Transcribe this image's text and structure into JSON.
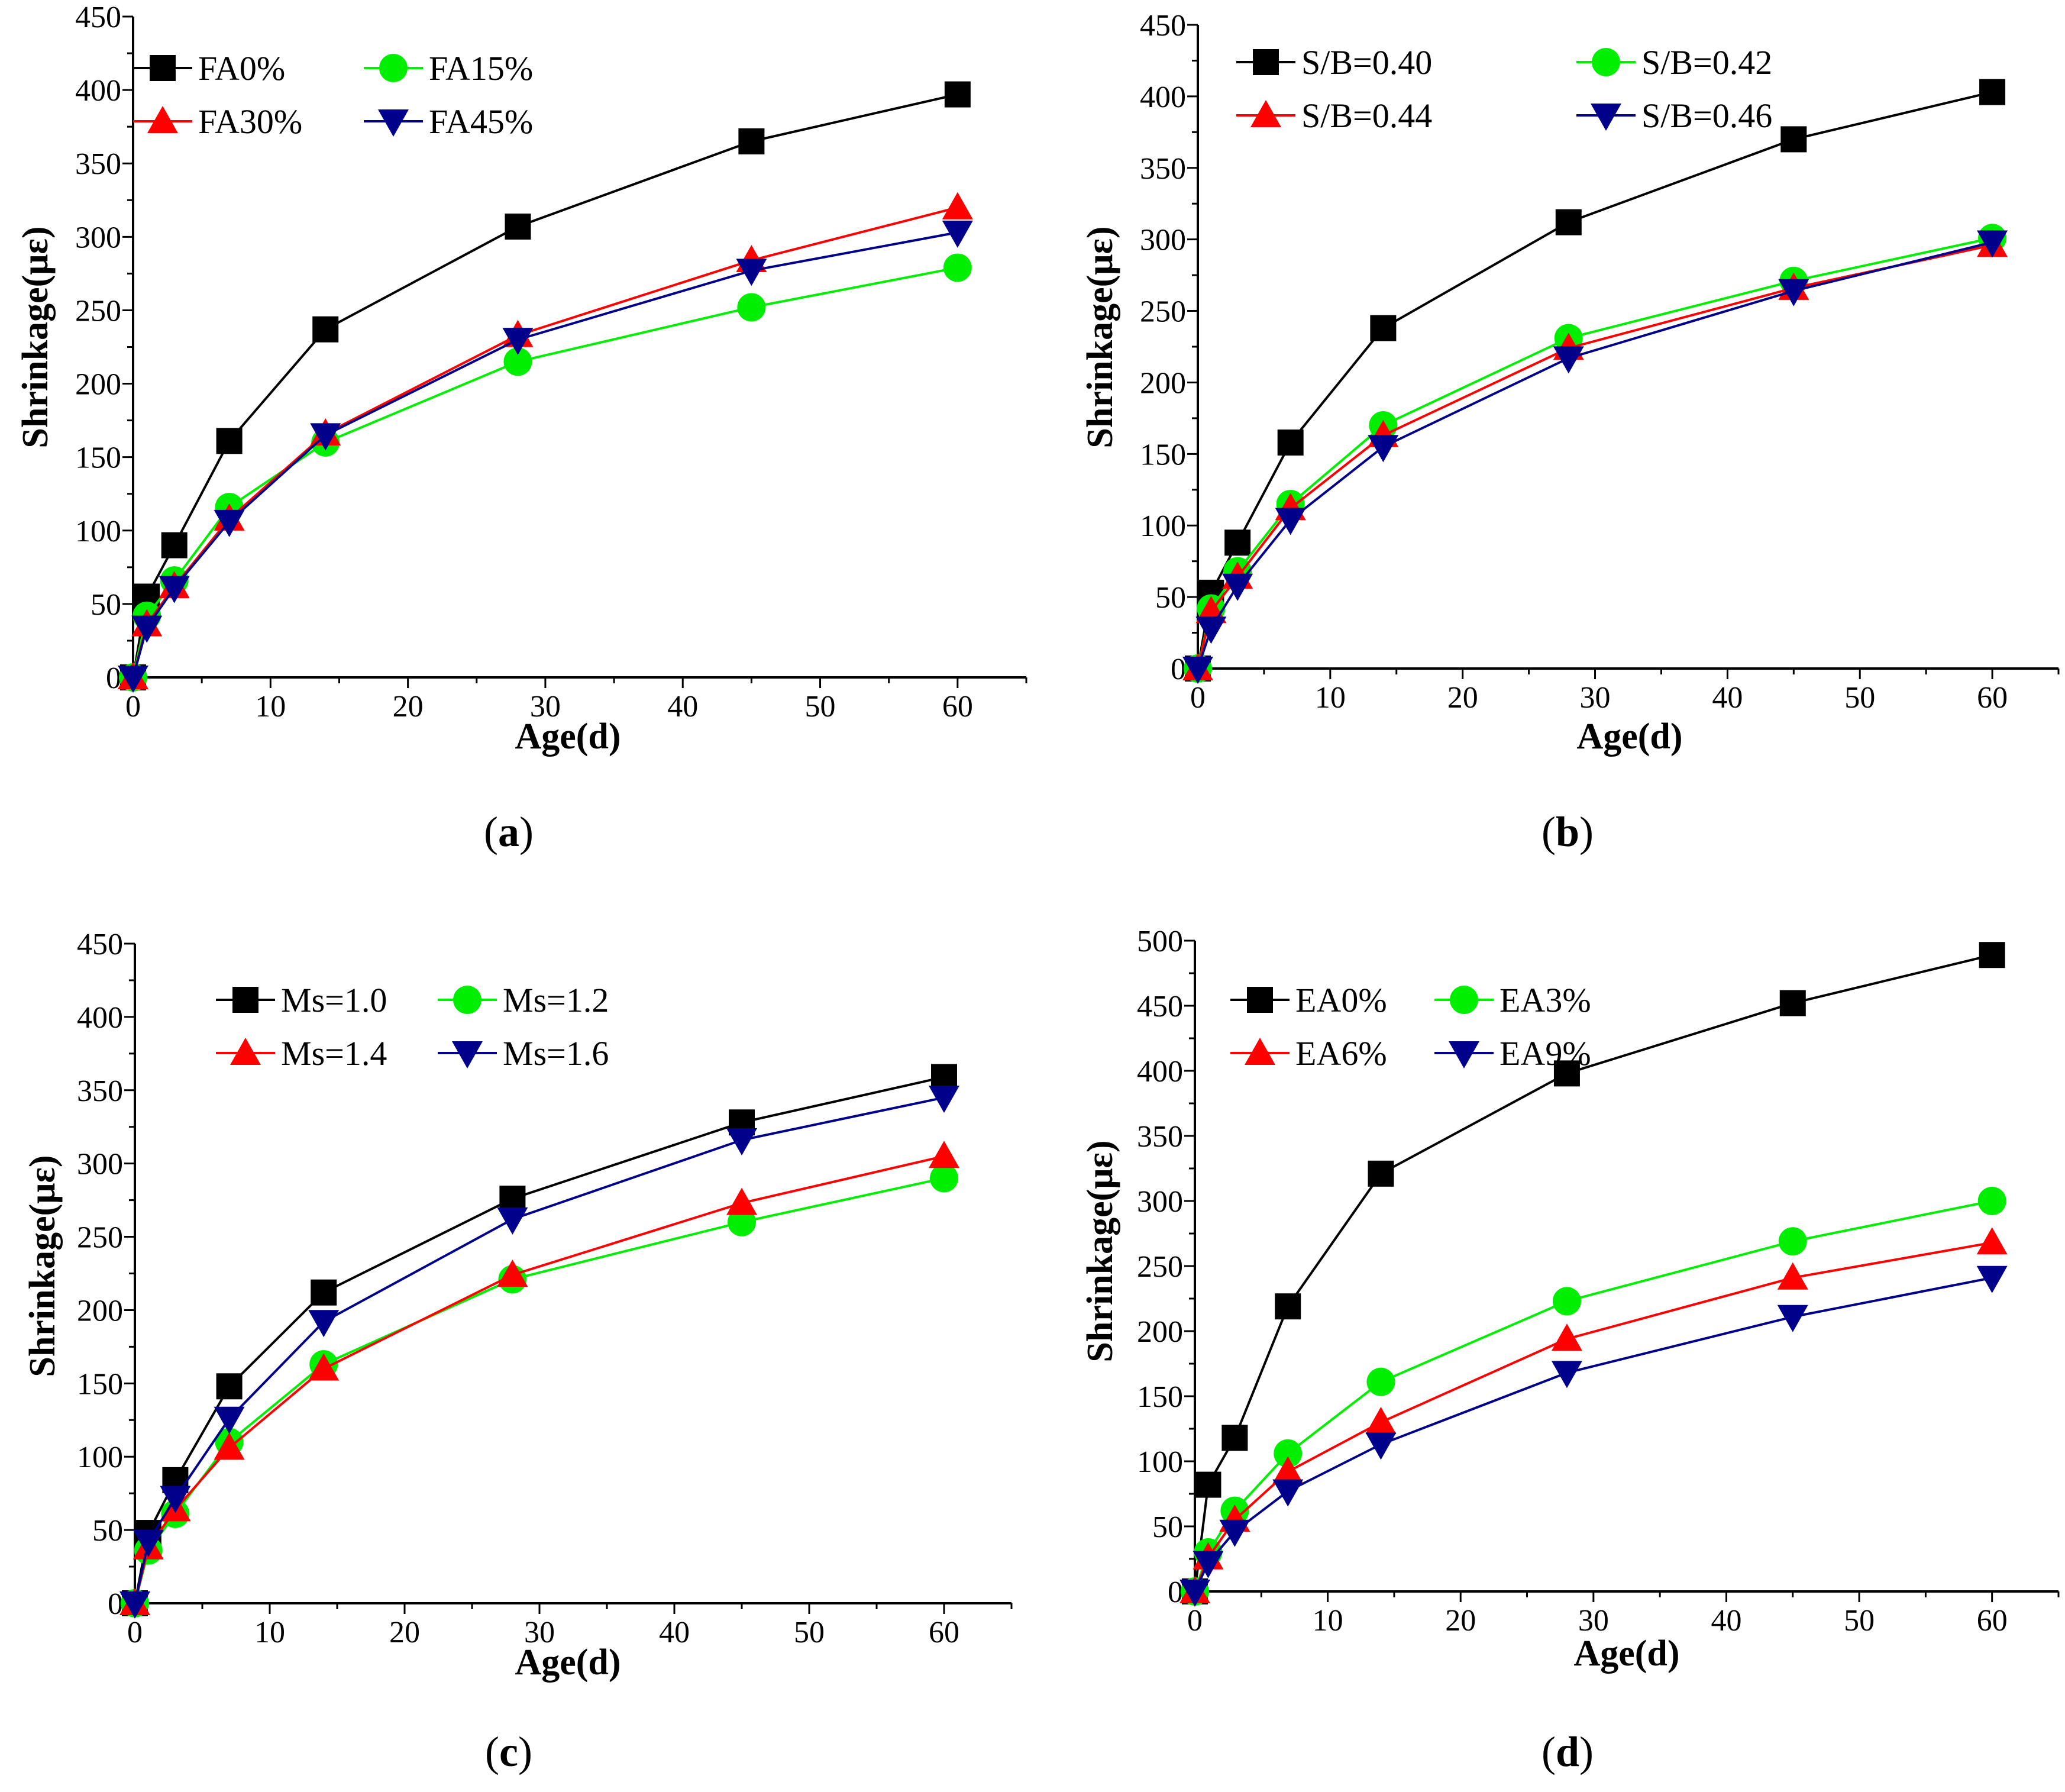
{
  "figure": {
    "colors": {
      "FA0": "#000000",
      "green": "#00ee00",
      "red": "#ff0000",
      "blue": "#00008b"
    }
  },
  "chart_data": [
    {
      "id": "a",
      "type": "line",
      "panel_label": {
        "open": "(",
        "letter": "a",
        "close": ")"
      },
      "xlabel": "Age(d)",
      "ylabel": "Shrinkage(με)",
      "xlim": [
        0,
        65
      ],
      "ylim": [
        0,
        450
      ],
      "xticks": [
        0,
        10,
        20,
        30,
        40,
        50,
        60
      ],
      "yticks": [
        0,
        50,
        100,
        150,
        200,
        250,
        300,
        350,
        400,
        450
      ],
      "x": [
        0,
        1,
        3,
        7,
        14,
        28,
        45,
        60
      ],
      "legend_position": "top-left",
      "series": [
        {
          "name": "FA0%",
          "color": "#000000",
          "marker": "square",
          "values": [
            0,
            55,
            90,
            161,
            237,
            307,
            365,
            397
          ]
        },
        {
          "name": "FA15%",
          "color": "#00ee00",
          "marker": "circle",
          "values": [
            0,
            42,
            66,
            116,
            160,
            215,
            252,
            279
          ]
        },
        {
          "name": "FA30%",
          "color": "#ff0000",
          "marker": "triangle-up",
          "values": [
            0,
            36,
            62,
            108,
            166,
            233,
            284,
            320
          ]
        },
        {
          "name": "FA45%",
          "color": "#00008b",
          "marker": "triangle-down",
          "values": [
            0,
            34,
            61,
            106,
            165,
            230,
            277,
            303
          ]
        }
      ]
    },
    {
      "id": "b",
      "type": "line",
      "panel_label": {
        "open": "(",
        "letter": "b",
        "close": ")"
      },
      "xlabel": "Age(d)",
      "ylabel": "Shrinkage(με)",
      "xlim": [
        0,
        65
      ],
      "ylim": [
        0,
        450
      ],
      "xticks": [
        0,
        10,
        20,
        30,
        40,
        50,
        60
      ],
      "yticks": [
        0,
        50,
        100,
        150,
        200,
        250,
        300,
        350,
        400,
        450
      ],
      "x": [
        0,
        1,
        3,
        7,
        14,
        28,
        45,
        60
      ],
      "legend_position": "top-left",
      "series": [
        {
          "name": "S/B=0.40",
          "color": "#000000",
          "marker": "square",
          "values": [
            0,
            53,
            88,
            158,
            238,
            312,
            370,
            403
          ]
        },
        {
          "name": "S/B=0.42",
          "color": "#00ee00",
          "marker": "circle",
          "values": [
            0,
            42,
            68,
            115,
            170,
            231,
            271,
            301
          ]
        },
        {
          "name": "S/B=0.44",
          "color": "#ff0000",
          "marker": "triangle-up",
          "values": [
            0,
            40,
            64,
            112,
            163,
            224,
            266,
            296
          ]
        },
        {
          "name": "S/B=0.46",
          "color": "#00008b",
          "marker": "triangle-down",
          "values": [
            0,
            28,
            58,
            104,
            155,
            217,
            264,
            298
          ]
        }
      ]
    },
    {
      "id": "c",
      "type": "line",
      "panel_label": {
        "open": "(",
        "letter": "c",
        "close": ")"
      },
      "xlabel": "Age(d)",
      "ylabel": "Shrinkage(με)",
      "xlim": [
        0,
        65
      ],
      "ylim": [
        0,
        450
      ],
      "xticks": [
        0,
        10,
        20,
        30,
        40,
        50,
        60
      ],
      "yticks": [
        0,
        50,
        100,
        150,
        200,
        250,
        300,
        350,
        400,
        450
      ],
      "x": [
        0,
        1,
        3,
        7,
        14,
        28,
        45,
        60
      ],
      "legend_position": "top-left",
      "series": [
        {
          "name": "Ms=1.0",
          "color": "#000000",
          "marker": "square",
          "values": [
            0,
            48,
            84,
            148,
            212,
            276,
            328,
            359
          ]
        },
        {
          "name": "Ms=1.2",
          "color": "#00ee00",
          "marker": "circle",
          "values": [
            0,
            36,
            61,
            110,
            163,
            221,
            260,
            290
          ]
        },
        {
          "name": "Ms=1.4",
          "color": "#ff0000",
          "marker": "triangle-up",
          "values": [
            0,
            38,
            64,
            106,
            160,
            224,
            273,
            305
          ]
        },
        {
          "name": "Ms=1.6",
          "color": "#00008b",
          "marker": "triangle-down",
          "values": [
            0,
            42,
            72,
            126,
            192,
            262,
            316,
            345
          ]
        }
      ]
    },
    {
      "id": "d",
      "type": "line",
      "panel_label": {
        "open": "(",
        "letter": "d",
        "close": ")"
      },
      "xlabel": "Age(d)",
      "ylabel": "Shrinkage(με)",
      "xlim": [
        0,
        65
      ],
      "ylim": [
        0,
        500
      ],
      "xticks": [
        0,
        10,
        20,
        30,
        40,
        50,
        60
      ],
      "yticks": [
        0,
        50,
        100,
        150,
        200,
        250,
        300,
        350,
        400,
        450,
        500
      ],
      "x": [
        0,
        1,
        3,
        7,
        14,
        28,
        45,
        60
      ],
      "legend_position": "top-left",
      "series": [
        {
          "name": "EA0%",
          "color": "#000000",
          "marker": "square",
          "values": [
            0,
            82,
            118,
            219,
            321,
            398,
            452,
            489
          ]
        },
        {
          "name": "EA3%",
          "color": "#00ee00",
          "marker": "circle",
          "values": [
            0,
            30,
            62,
            106,
            161,
            223,
            269,
            300
          ]
        },
        {
          "name": "EA6%",
          "color": "#ff0000",
          "marker": "triangle-up",
          "values": [
            0,
            26,
            55,
            92,
            130,
            194,
            241,
            268
          ]
        },
        {
          "name": "EA9%",
          "color": "#00008b",
          "marker": "triangle-down",
          "values": [
            0,
            22,
            46,
            77,
            113,
            168,
            211,
            241
          ]
        }
      ]
    }
  ]
}
